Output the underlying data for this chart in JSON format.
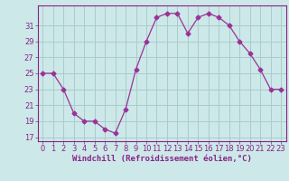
{
  "x": [
    0,
    1,
    2,
    3,
    4,
    5,
    6,
    7,
    8,
    9,
    10,
    11,
    12,
    13,
    14,
    15,
    16,
    17,
    18,
    19,
    20,
    21,
    22,
    23
  ],
  "y": [
    25,
    25,
    23,
    20,
    19,
    19,
    18,
    17.5,
    20.5,
    25.5,
    29,
    32,
    32.5,
    32.5,
    30,
    32,
    32.5,
    32,
    31,
    29,
    27.5,
    25.5,
    23,
    23
  ],
  "line_color": "#993399",
  "marker": "D",
  "marker_size": 2.5,
  "bg_color": "#cce8e8",
  "grid_color": "#aacccc",
  "xlabel": "Windchill (Refroidissement éolien,°C)",
  "xlabel_fontsize": 6.5,
  "yticks": [
    17,
    19,
    21,
    23,
    25,
    27,
    29,
    31
  ],
  "ylim": [
    16.5,
    33.5
  ],
  "xlim": [
    -0.5,
    23.5
  ],
  "tick_fontsize": 6.0,
  "label_color": "#882288"
}
